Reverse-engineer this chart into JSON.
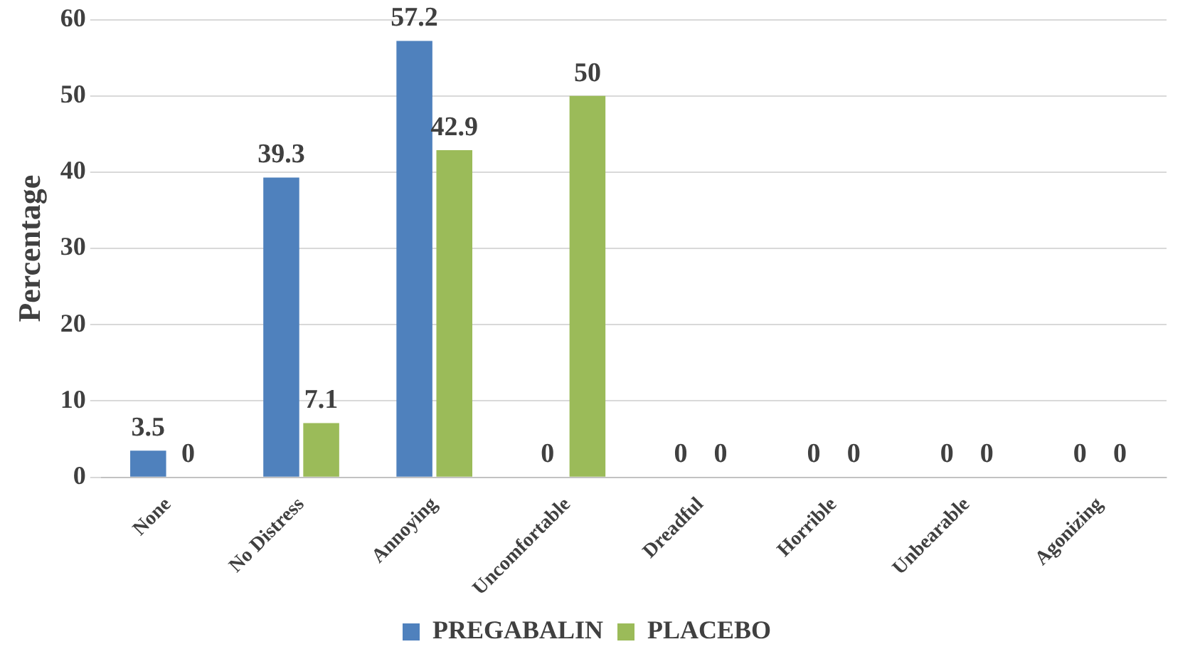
{
  "chart_data": {
    "type": "bar",
    "ylabel": "Percentage",
    "categories": [
      "None",
      "No Distress",
      "Annoying",
      "Uncomfortable",
      "Dreadful",
      "Horrible",
      "Unbearable",
      "Agonizing"
    ],
    "series": [
      {
        "name": "PREGABALIN",
        "color": "#4f81bd",
        "values": [
          3.5,
          39.3,
          57.2,
          0,
          0,
          0,
          0,
          0
        ]
      },
      {
        "name": "PLACEBO",
        "color": "#9bbb59",
        "values": [
          0,
          7.1,
          42.9,
          50,
          0,
          0,
          0,
          0
        ]
      }
    ],
    "ylim": [
      0,
      60
    ],
    "yticks": [
      0,
      10,
      20,
      30,
      40,
      50,
      60
    ],
    "grid": "y",
    "legend": "bottom",
    "data_labels": true
  }
}
